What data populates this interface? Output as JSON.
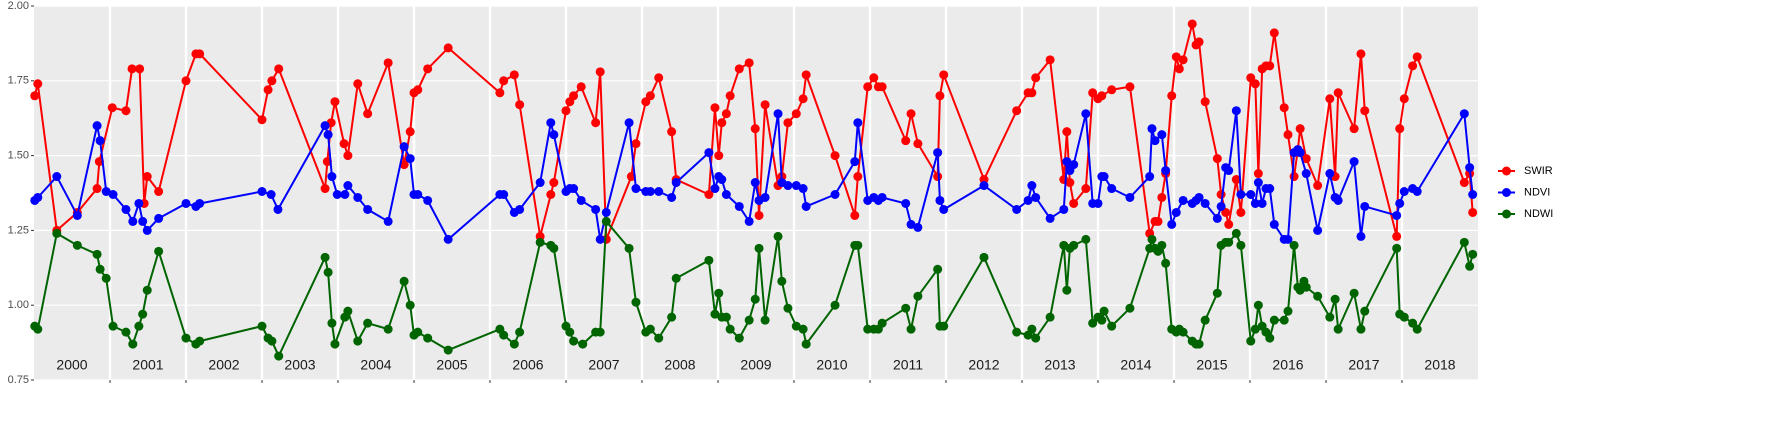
{
  "chart_data": {
    "type": "line",
    "xlim": [
      2000,
      2019
    ],
    "xticks": [
      2001,
      2002,
      2003,
      2004,
      2005,
      2006,
      2007,
      2008,
      2009,
      2010,
      2011,
      2012,
      2013,
      2014,
      2015,
      2016,
      2017,
      2018
    ],
    "year_labels": [
      {
        "value": 2000.5,
        "label": "2000"
      },
      {
        "value": 2001.5,
        "label": "2001"
      },
      {
        "value": 2002.5,
        "label": "2002"
      },
      {
        "value": 2003.5,
        "label": "2003"
      },
      {
        "value": 2004.5,
        "label": "2004"
      },
      {
        "value": 2005.5,
        "label": "2005"
      },
      {
        "value": 2006.5,
        "label": "2006"
      },
      {
        "value": 2007.5,
        "label": "2007"
      },
      {
        "value": 2008.5,
        "label": "2008"
      },
      {
        "value": 2009.5,
        "label": "2009"
      },
      {
        "value": 2010.5,
        "label": "2010"
      },
      {
        "value": 2011.5,
        "label": "2011"
      },
      {
        "value": 2012.5,
        "label": "2012"
      },
      {
        "value": 2013.5,
        "label": "2013"
      },
      {
        "value": 2014.5,
        "label": "2014"
      },
      {
        "value": 2015.5,
        "label": "2015"
      },
      {
        "value": 2016.5,
        "label": "2016"
      },
      {
        "value": 2017.5,
        "label": "2017"
      },
      {
        "value": 2018.5,
        "label": "2018"
      }
    ],
    "ylim": [
      0.75,
      2.0
    ],
    "yticks": [
      0.75,
      {
        "value": 1.0,
        "label": "1.00"
      },
      1.25,
      {
        "value": 1.5,
        "label": "1.50"
      },
      1.75,
      {
        "value": 2.0,
        "label": "2.00"
      }
    ],
    "grid": true,
    "legend": "right",
    "series": [
      {
        "name": "SWIR",
        "color": "#ff0000",
        "x": [
          2000.01,
          2000.05,
          2000.3,
          2000.57,
          2000.83,
          2000.86,
          2001.03,
          2001.21,
          2001.29,
          2001.39,
          2001.45,
          2001.49,
          2001.64,
          2002.0,
          2002.13,
          2002.18,
          2003.0,
          2003.08,
          2003.13,
          2003.22,
          2003.83,
          2003.86,
          2003.91,
          2003.96,
          2004.08,
          2004.13,
          2004.26,
          2004.39,
          2004.66,
          2004.87,
          2004.95,
          2005.0,
          2005.05,
          2005.18,
          2005.45,
          2006.13,
          2006.18,
          2006.32,
          2006.39,
          2006.66,
          2006.8,
          2006.84,
          2007.0,
          2007.05,
          2007.1,
          2007.2,
          2007.39,
          2007.45,
          2007.53,
          2007.86,
          2007.92,
          2008.05,
          2008.11,
          2008.22,
          2008.39,
          2008.45,
          2008.88,
          2008.96,
          2009.01,
          2009.05,
          2009.11,
          2009.16,
          2009.28,
          2009.41,
          2009.49,
          2009.54,
          2009.62,
          2009.79,
          2009.84,
          2009.92,
          2010.03,
          2010.12,
          2010.16,
          2010.54,
          2010.8,
          2010.84,
          2010.97,
          2011.05,
          2011.11,
          2011.16,
          2011.47,
          2011.54,
          2011.63,
          2011.89,
          2011.92,
          2011.97,
          2012.5,
          2012.93,
          2013.08,
          2013.13,
          2013.18,
          2013.37,
          2013.55,
          2013.59,
          2013.63,
          2013.68,
          2013.84,
          2013.93,
          2014.0,
          2014.05,
          2014.18,
          2014.42,
          2014.68,
          2014.75,
          2014.79,
          2014.84,
          2014.89,
          2014.97,
          2015.03,
          2015.07,
          2015.12,
          2015.24,
          2015.29,
          2015.33,
          2015.41,
          2015.57,
          2015.62,
          2015.68,
          2015.72,
          2015.82,
          2015.88,
          2016.01,
          2016.07,
          2016.11,
          2016.16,
          2016.21,
          2016.26,
          2016.32,
          2016.45,
          2016.5,
          2016.58,
          2016.63,
          2016.66,
          2016.74,
          2016.89,
          2017.05,
          2017.12,
          2017.16,
          2017.37,
          2017.46,
          2017.51,
          2017.93,
          2017.97,
          2018.03,
          2018.14,
          2018.2,
          2018.82,
          2018.89,
          2018.93
        ],
        "values": [
          1.7,
          1.74,
          1.25,
          1.31,
          1.39,
          1.48,
          1.66,
          1.65,
          1.79,
          1.79,
          1.34,
          1.43,
          1.38,
          1.75,
          1.84,
          1.84,
          1.62,
          1.72,
          1.75,
          1.79,
          1.39,
          1.48,
          1.61,
          1.68,
          1.54,
          1.5,
          1.74,
          1.64,
          1.81,
          1.47,
          1.58,
          1.71,
          1.72,
          1.79,
          1.86,
          1.71,
          1.75,
          1.77,
          1.67,
          1.23,
          1.37,
          1.41,
          1.65,
          1.68,
          1.7,
          1.73,
          1.61,
          1.78,
          1.22,
          1.43,
          1.54,
          1.68,
          1.7,
          1.76,
          1.58,
          1.42,
          1.37,
          1.66,
          1.5,
          1.61,
          1.64,
          1.7,
          1.79,
          1.81,
          1.59,
          1.3,
          1.67,
          1.4,
          1.43,
          1.61,
          1.64,
          1.69,
          1.77,
          1.5,
          1.3,
          1.43,
          1.73,
          1.76,
          1.73,
          1.73,
          1.55,
          1.64,
          1.54,
          1.43,
          1.7,
          1.77,
          1.42,
          1.65,
          1.71,
          1.71,
          1.76,
          1.82,
          1.42,
          1.58,
          1.41,
          1.34,
          1.39,
          1.71,
          1.69,
          1.7,
          1.72,
          1.73,
          1.24,
          1.28,
          1.28,
          1.36,
          1.44,
          1.7,
          1.83,
          1.79,
          1.82,
          1.94,
          1.87,
          1.88,
          1.68,
          1.49,
          1.37,
          1.31,
          1.27,
          1.42,
          1.31,
          1.76,
          1.74,
          1.44,
          1.79,
          1.8,
          1.8,
          1.91,
          1.66,
          1.57,
          1.43,
          1.52,
          1.59,
          1.49,
          1.4,
          1.69,
          1.43,
          1.71,
          1.59,
          1.84,
          1.65,
          1.23,
          1.59,
          1.69,
          1.8,
          1.83,
          1.41,
          1.44,
          1.31
        ]
      },
      {
        "name": "NDVI",
        "color": "#0000ff",
        "x": [
          2000.01,
          2000.05,
          2000.3,
          2000.57,
          2000.83,
          2000.87,
          2000.95,
          2001.04,
          2001.21,
          2001.3,
          2001.38,
          2001.43,
          2001.49,
          2001.64,
          2002.0,
          2002.13,
          2002.18,
          2003.0,
          2003.12,
          2003.21,
          2003.83,
          2003.87,
          2003.92,
          2003.99,
          2004.09,
          2004.13,
          2004.26,
          2004.39,
          2004.66,
          2004.87,
          2004.95,
          2005.0,
          2005.05,
          2005.18,
          2005.45,
          2006.13,
          2006.18,
          2006.32,
          2006.39,
          2006.66,
          2006.8,
          2006.84,
          2007.0,
          2007.05,
          2007.1,
          2007.2,
          2007.39,
          2007.45,
          2007.53,
          2007.83,
          2007.92,
          2008.05,
          2008.11,
          2008.22,
          2008.39,
          2008.45,
          2008.88,
          2008.96,
          2009.01,
          2009.05,
          2009.11,
          2009.28,
          2009.41,
          2009.49,
          2009.54,
          2009.62,
          2009.79,
          2009.84,
          2009.92,
          2010.03,
          2010.12,
          2010.16,
          2010.54,
          2010.8,
          2010.84,
          2010.97,
          2011.05,
          2011.11,
          2011.16,
          2011.47,
          2011.54,
          2011.63,
          2011.89,
          2011.92,
          2011.97,
          2012.5,
          2012.93,
          2013.08,
          2013.13,
          2013.18,
          2013.37,
          2013.55,
          2013.59,
          2013.63,
          2013.68,
          2013.84,
          2013.93,
          2014.0,
          2014.05,
          2014.08,
          2014.18,
          2014.42,
          2014.68,
          2014.71,
          2014.75,
          2014.84,
          2014.89,
          2014.97,
          2015.03,
          2015.12,
          2015.24,
          2015.29,
          2015.33,
          2015.41,
          2015.57,
          2015.62,
          2015.68,
          2015.72,
          2015.82,
          2015.88,
          2016.01,
          2016.07,
          2016.11,
          2016.16,
          2016.21,
          2016.26,
          2016.32,
          2016.45,
          2016.5,
          2016.58,
          2016.63,
          2016.66,
          2016.74,
          2016.89,
          2017.05,
          2017.12,
          2017.16,
          2017.37,
          2017.46,
          2017.51,
          2017.93,
          2017.97,
          2018.03,
          2018.14,
          2018.2,
          2018.82,
          2018.89,
          2018.93
        ],
        "values": [
          1.35,
          1.36,
          1.43,
          1.3,
          1.6,
          1.55,
          1.38,
          1.37,
          1.32,
          1.28,
          1.34,
          1.28,
          1.25,
          1.29,
          1.34,
          1.33,
          1.34,
          1.38,
          1.37,
          1.32,
          1.6,
          1.57,
          1.43,
          1.37,
          1.37,
          1.4,
          1.36,
          1.32,
          1.28,
          1.53,
          1.49,
          1.37,
          1.37,
          1.35,
          1.22,
          1.37,
          1.37,
          1.31,
          1.32,
          1.41,
          1.61,
          1.57,
          1.38,
          1.39,
          1.39,
          1.35,
          1.32,
          1.22,
          1.31,
          1.61,
          1.39,
          1.38,
          1.38,
          1.38,
          1.36,
          1.41,
          1.51,
          1.39,
          1.43,
          1.42,
          1.37,
          1.33,
          1.28,
          1.41,
          1.35,
          1.36,
          1.64,
          1.41,
          1.4,
          1.4,
          1.39,
          1.33,
          1.37,
          1.48,
          1.61,
          1.35,
          1.36,
          1.35,
          1.36,
          1.34,
          1.27,
          1.26,
          1.51,
          1.35,
          1.32,
          1.4,
          1.32,
          1.35,
          1.4,
          1.36,
          1.29,
          1.32,
          1.48,
          1.45,
          1.47,
          1.64,
          1.34,
          1.34,
          1.43,
          1.43,
          1.39,
          1.36,
          1.43,
          1.59,
          1.55,
          1.57,
          1.45,
          1.27,
          1.31,
          1.35,
          1.34,
          1.35,
          1.36,
          1.34,
          1.29,
          1.33,
          1.46,
          1.45,
          1.65,
          1.37,
          1.37,
          1.34,
          1.41,
          1.34,
          1.39,
          1.39,
          1.27,
          1.22,
          1.22,
          1.51,
          1.52,
          1.51,
          1.44,
          1.25,
          1.44,
          1.36,
          1.35,
          1.48,
          1.23,
          1.33,
          1.3,
          1.34,
          1.38,
          1.39,
          1.38,
          1.64,
          1.46,
          1.37
        ]
      },
      {
        "name": "NDWI",
        "color": "#006400",
        "x": [
          2000.01,
          2000.05,
          2000.3,
          2000.57,
          2000.83,
          2000.87,
          2000.95,
          2001.04,
          2001.21,
          2001.3,
          2001.38,
          2001.43,
          2001.49,
          2001.64,
          2002.0,
          2002.13,
          2002.18,
          2003.0,
          2003.08,
          2003.13,
          2003.22,
          2003.83,
          2003.87,
          2003.92,
          2003.96,
          2004.09,
          2004.13,
          2004.26,
          2004.39,
          2004.66,
          2004.87,
          2004.95,
          2005.0,
          2005.05,
          2005.18,
          2005.45,
          2006.13,
          2006.18,
          2006.32,
          2006.39,
          2006.66,
          2006.8,
          2006.84,
          2007.0,
          2007.05,
          2007.1,
          2007.22,
          2007.39,
          2007.45,
          2007.53,
          2007.83,
          2007.92,
          2008.05,
          2008.11,
          2008.22,
          2008.39,
          2008.45,
          2008.88,
          2008.96,
          2009.01,
          2009.05,
          2009.11,
          2009.16,
          2009.28,
          2009.41,
          2009.49,
          2009.54,
          2009.62,
          2009.79,
          2009.84,
          2009.92,
          2010.03,
          2010.12,
          2010.16,
          2010.54,
          2010.8,
          2010.84,
          2010.97,
          2011.05,
          2011.11,
          2011.16,
          2011.47,
          2011.54,
          2011.63,
          2011.89,
          2011.92,
          2011.97,
          2012.5,
          2012.93,
          2013.08,
          2013.13,
          2013.18,
          2013.37,
          2013.55,
          2013.59,
          2013.63,
          2013.68,
          2013.84,
          2013.93,
          2014.0,
          2014.05,
          2014.08,
          2014.18,
          2014.42,
          2014.68,
          2014.71,
          2014.75,
          2014.79,
          2014.84,
          2014.89,
          2014.97,
          2015.03,
          2015.07,
          2015.12,
          2015.24,
          2015.29,
          2015.33,
          2015.41,
          2015.57,
          2015.62,
          2015.68,
          2015.72,
          2015.82,
          2015.88,
          2016.01,
          2016.07,
          2016.11,
          2016.16,
          2016.21,
          2016.26,
          2016.32,
          2016.45,
          2016.5,
          2016.58,
          2016.63,
          2016.66,
          2016.71,
          2016.74,
          2016.89,
          2017.05,
          2017.12,
          2017.16,
          2017.37,
          2017.46,
          2017.51,
          2017.93,
          2017.97,
          2018.03,
          2018.14,
          2018.2,
          2018.82,
          2018.89,
          2018.93
        ],
        "values": [
          0.93,
          0.92,
          1.24,
          1.2,
          1.17,
          1.12,
          1.09,
          0.93,
          0.91,
          0.87,
          0.93,
          0.97,
          1.05,
          1.18,
          0.89,
          0.87,
          0.88,
          0.93,
          0.89,
          0.88,
          0.83,
          1.16,
          1.11,
          0.94,
          0.87,
          0.96,
          0.98,
          0.88,
          0.94,
          0.92,
          1.08,
          1.0,
          0.9,
          0.91,
          0.89,
          0.85,
          0.92,
          0.9,
          0.87,
          0.91,
          1.21,
          1.2,
          1.19,
          0.93,
          0.91,
          0.88,
          0.87,
          0.91,
          0.91,
          1.28,
          1.19,
          1.01,
          0.91,
          0.92,
          0.89,
          0.96,
          1.09,
          1.15,
          0.97,
          1.04,
          0.96,
          0.96,
          0.92,
          0.89,
          0.95,
          1.02,
          1.19,
          0.95,
          1.23,
          1.08,
          0.99,
          0.93,
          0.92,
          0.87,
          1.0,
          1.2,
          1.2,
          0.92,
          0.92,
          0.92,
          0.94,
          0.99,
          0.92,
          1.03,
          1.12,
          0.93,
          0.93,
          1.16,
          0.91,
          0.9,
          0.92,
          0.89,
          0.96,
          1.2,
          1.05,
          1.19,
          1.2,
          1.22,
          0.94,
          0.96,
          0.95,
          0.98,
          0.93,
          0.99,
          1.19,
          1.22,
          1.19,
          1.18,
          1.2,
          1.14,
          0.92,
          0.91,
          0.92,
          0.91,
          0.88,
          0.87,
          0.87,
          0.95,
          1.04,
          1.2,
          1.21,
          1.21,
          1.24,
          1.2,
          0.88,
          0.92,
          1.0,
          0.93,
          0.91,
          0.89,
          0.95,
          0.95,
          0.98,
          1.2,
          1.06,
          1.05,
          1.08,
          1.06,
          1.03,
          0.96,
          1.02,
          0.92,
          1.04,
          0.92,
          0.98,
          1.19,
          0.97,
          0.96,
          0.94,
          0.92,
          1.21,
          1.13,
          1.17
        ]
      }
    ]
  }
}
